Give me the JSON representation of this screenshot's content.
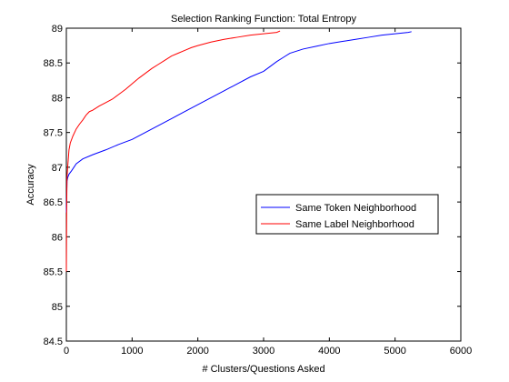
{
  "chart_data": {
    "type": "line",
    "title": "Selection Ranking Function: Total Entropy",
    "xlabel": "# Clusters/Questions Asked",
    "ylabel": "Accuracy",
    "xlim": [
      0,
      6000
    ],
    "ylim": [
      84.5,
      89
    ],
    "xticks": [
      0,
      1000,
      2000,
      3000,
      4000,
      5000,
      6000
    ],
    "yticks": [
      84.5,
      85,
      85.5,
      86,
      86.5,
      87,
      87.5,
      88,
      88.5,
      89
    ],
    "grid": false,
    "legend_position": "center-right",
    "series": [
      {
        "name": "Same Token Neighborhood",
        "color": "#0000ff",
        "x": [
          0,
          10,
          20,
          40,
          80,
          150,
          250,
          400,
          600,
          800,
          1000,
          1200,
          1400,
          1600,
          1800,
          2000,
          2200,
          2400,
          2600,
          2800,
          3000,
          3100,
          3200,
          3300,
          3400,
          3600,
          3800,
          4000,
          4200,
          4400,
          4600,
          4800,
          5000,
          5200,
          5250
        ],
        "y": [
          86.35,
          86.8,
          86.85,
          86.9,
          86.95,
          87.05,
          87.12,
          87.18,
          87.25,
          87.33,
          87.4,
          87.5,
          87.6,
          87.7,
          87.8,
          87.9,
          88.0,
          88.1,
          88.2,
          88.3,
          88.38,
          88.45,
          88.52,
          88.58,
          88.64,
          88.7,
          88.74,
          88.78,
          88.81,
          88.84,
          88.87,
          88.9,
          88.92,
          88.94,
          88.95
        ]
      },
      {
        "name": "Same Label Neighborhood",
        "color": "#ff0000",
        "x": [
          0,
          5,
          10,
          20,
          40,
          60,
          80,
          100,
          150,
          200,
          250,
          300,
          350,
          400,
          500,
          600,
          700,
          800,
          900,
          1000,
          1100,
          1200,
          1300,
          1400,
          1500,
          1600,
          1700,
          1800,
          1900,
          2000,
          2200,
          2400,
          2600,
          2800,
          3000,
          3200,
          3250
        ],
        "y": [
          85.5,
          86.4,
          86.85,
          87.0,
          87.25,
          87.35,
          87.4,
          87.45,
          87.55,
          87.62,
          87.68,
          87.75,
          87.8,
          87.82,
          87.88,
          87.93,
          87.98,
          88.05,
          88.12,
          88.2,
          88.28,
          88.35,
          88.42,
          88.48,
          88.54,
          88.6,
          88.64,
          88.68,
          88.72,
          88.75,
          88.8,
          88.84,
          88.87,
          88.9,
          88.92,
          88.94,
          88.96
        ]
      }
    ]
  }
}
